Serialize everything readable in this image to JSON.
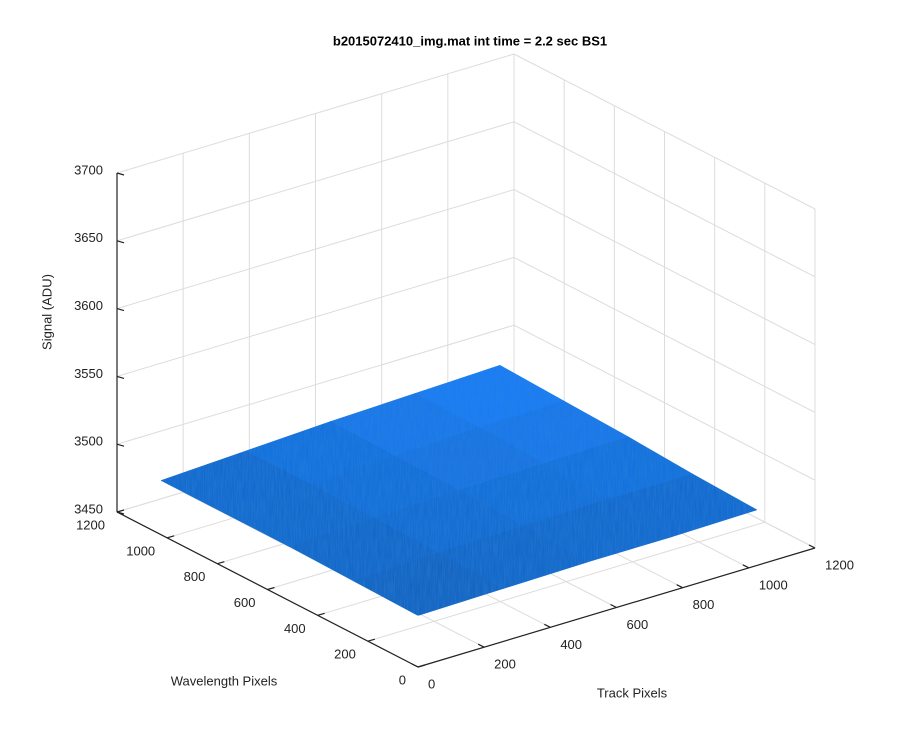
{
  "chart_data": {
    "type": "surface",
    "title": "b2015072410_img.mat int time = 2.2 sec   BS1",
    "xlabel": "Track Pixels",
    "ylabel": "Wavelength Pixels",
    "zlabel": "Signal (ADU)",
    "x": [
      0,
      256,
      512,
      768,
      1024
    ],
    "y": [
      0,
      256,
      512,
      768,
      1024
    ],
    "z": [
      [
        3488,
        3489,
        3490,
        3490,
        3491
      ],
      [
        3489,
        3491,
        3492,
        3493,
        3493
      ],
      [
        3490,
        3492,
        3494,
        3495,
        3496
      ],
      [
        3490,
        3493,
        3495,
        3497,
        3498
      ],
      [
        3490,
        3493,
        3496,
        3498,
        3500
      ]
    ],
    "color": "#1a6fdf",
    "xlim": [
      0,
      1200
    ],
    "ylim": [
      0,
      1200
    ],
    "zlim": [
      3450,
      3700
    ],
    "xticks": [
      0,
      200,
      400,
      600,
      800,
      1000,
      1200
    ],
    "yticks": [
      0,
      200,
      400,
      600,
      800,
      1000,
      1200
    ],
    "zticks": [
      3450,
      3500,
      3550,
      3600,
      3650,
      3700
    ],
    "grid": true
  }
}
